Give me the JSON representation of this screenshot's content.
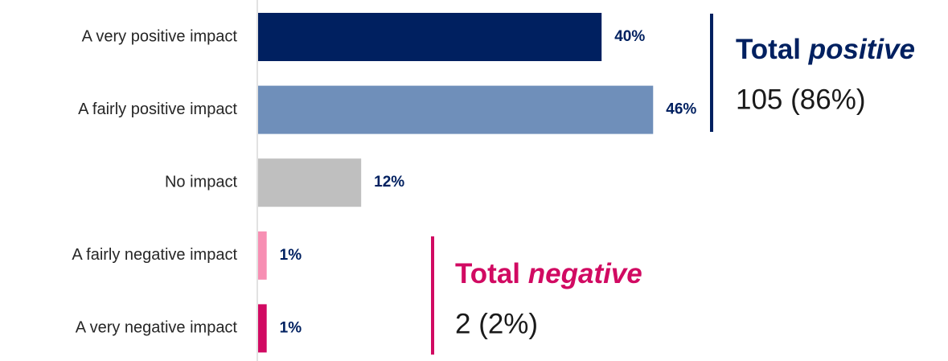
{
  "chart_data": {
    "type": "hbar",
    "categories": [
      "A very positive impact",
      "A fairly positive impact",
      "No impact",
      "A fairly negative impact",
      "A very negative impact"
    ],
    "values": [
      40,
      46,
      12,
      1,
      1
    ],
    "value_labels": [
      "40%",
      "46%",
      "12%",
      "1%",
      "1%"
    ],
    "colors": [
      "#002060",
      "#6f8fba",
      "#bfbfbf",
      "#f78fb3",
      "#d10a62"
    ],
    "annotations": [
      {
        "lead": "Total",
        "emphasis": "positive",
        "detail": "105 (86%)",
        "color": "#002060"
      },
      {
        "lead": "Total",
        "emphasis": "negative",
        "detail": "2 (2%)",
        "color": "#d10a62"
      }
    ]
  }
}
